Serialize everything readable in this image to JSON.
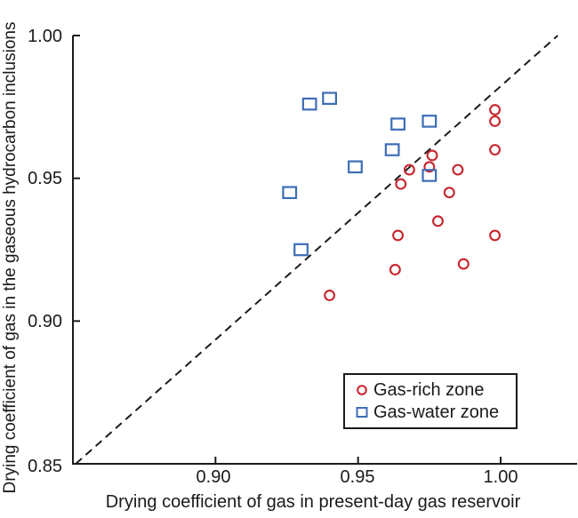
{
  "figure": {
    "x_axis": {
      "title": "Drying coefficient of gas in present-day gas reservoir",
      "tick_labels": [
        "0.90",
        "0.95",
        "1.00"
      ]
    },
    "y_axis": {
      "title": "Drying coefficient of gas in the gaseous hydrocarbon inclusions",
      "tick_labels": [
        "1.00",
        "0.95",
        "0.90",
        "0.85"
      ]
    },
    "legend": {
      "items": [
        {
          "label": "Gas-rich zone",
          "marker": "circle",
          "color": "#C8242C"
        },
        {
          "label": "Gas-water zone",
          "marker": "square",
          "color": "#3D6DB5"
        }
      ]
    },
    "colors": {
      "gas_rich": "#C8242C",
      "gas_water": "#3D6DB5",
      "axis": "#1a1a1a"
    }
  },
  "chart_data": {
    "type": "scatter",
    "title": "",
    "xlabel": "Drying coefficient of gas in present-day gas reservoir",
    "ylabel": "Drying coefficient of gas in the gaseous hydrocarbon inclusions",
    "xlim": [
      0.85,
      1.0
    ],
    "ylim": [
      0.85,
      1.0
    ],
    "x_ticks": [
      0.9,
      0.95,
      1.0
    ],
    "y_ticks": [
      1.0,
      0.95,
      0.9
    ],
    "grid": false,
    "legend_position": "lower right",
    "series": [
      {
        "name": "Gas-rich zone",
        "marker": "circle",
        "color": "#C8242C",
        "points": [
          [
            0.998,
            0.974
          ],
          [
            0.998,
            0.97
          ],
          [
            0.998,
            0.96
          ],
          [
            0.976,
            0.958
          ],
          [
            0.975,
            0.954
          ],
          [
            0.985,
            0.953
          ],
          [
            0.968,
            0.953
          ],
          [
            0.965,
            0.948
          ],
          [
            0.982,
            0.945
          ],
          [
            0.978,
            0.935
          ],
          [
            0.964,
            0.93
          ],
          [
            0.998,
            0.93
          ],
          [
            0.987,
            0.92
          ],
          [
            0.963,
            0.918
          ],
          [
            0.94,
            0.909
          ]
        ]
      },
      {
        "name": "Gas-water zone",
        "marker": "square",
        "color": "#3D6DB5",
        "points": [
          [
            0.933,
            0.976
          ],
          [
            0.94,
            0.978
          ],
          [
            0.964,
            0.969
          ],
          [
            0.975,
            0.97
          ],
          [
            0.962,
            0.96
          ],
          [
            0.949,
            0.954
          ],
          [
            0.975,
            0.951
          ],
          [
            0.926,
            0.945
          ],
          [
            0.93,
            0.925
          ]
        ]
      }
    ],
    "reference_line": {
      "style": "dashed",
      "color": "#1a1a1a",
      "from": [
        0.851,
        0.85
      ],
      "to": [
        1.02,
        1.0
      ]
    }
  }
}
